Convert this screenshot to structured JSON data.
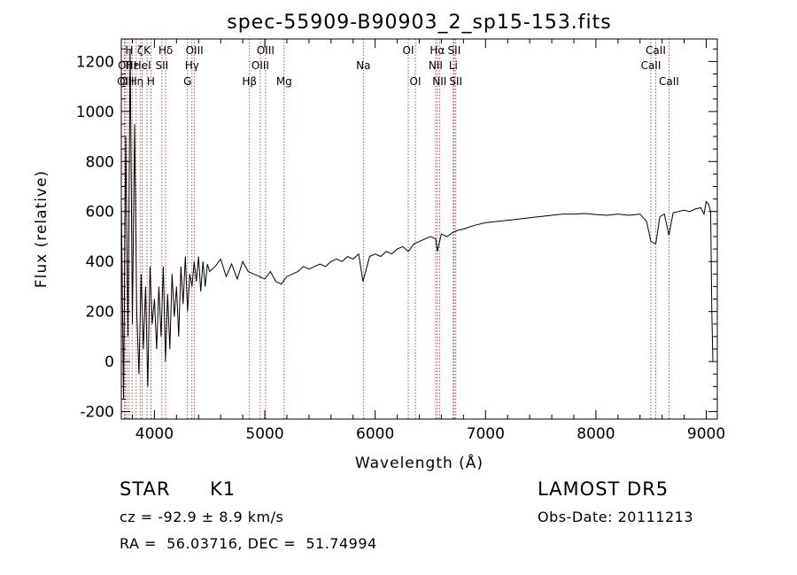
{
  "chart_data": {
    "type": "line",
    "title": "spec-55909-B90903_2_sp15-153.fits",
    "xlabel": "Wavelength (Å)",
    "ylabel": "Flux (relative)",
    "xlim": [
      3700,
      9100
    ],
    "ylim": [
      -230,
      1290
    ],
    "xticks": [
      4000,
      5000,
      6000,
      7000,
      8000,
      9000
    ],
    "yticks": [
      -200,
      0,
      200,
      400,
      600,
      800,
      1000,
      1200
    ],
    "grid": false,
    "line_color": "#000000",
    "marker_color": "#b22222",
    "series": [
      {
        "x": [
          3700,
          3720,
          3740,
          3760,
          3780,
          3800,
          3820,
          3840,
          3860,
          3880,
          3900,
          3920,
          3940,
          3960,
          3980,
          4000,
          4020,
          4040,
          4060,
          4080,
          4100,
          4120,
          4140,
          4160,
          4180,
          4200,
          4220,
          4240,
          4260,
          4280,
          4300,
          4320,
          4340,
          4360,
          4380,
          4400,
          4420,
          4440,
          4460,
          4480,
          4500,
          4550,
          4600,
          4650,
          4700,
          4750,
          4800,
          4850,
          4900,
          4950,
          5000,
          5050,
          5100,
          5150,
          5200,
          5250,
          5300,
          5350,
          5400,
          5450,
          5500,
          5550,
          5600,
          5650,
          5700,
          5750,
          5800,
          5850,
          5890,
          5950,
          6000,
          6050,
          6100,
          6150,
          6200,
          6250,
          6300,
          6350,
          6400,
          6450,
          6500,
          6550,
          6563,
          6600,
          6650,
          6700,
          6750,
          6800,
          6900,
          7000,
          7100,
          7200,
          7300,
          7400,
          7500,
          7600,
          7700,
          7800,
          7900,
          8000,
          8100,
          8200,
          8300,
          8400,
          8460,
          8498,
          8542,
          8580,
          8620,
          8662,
          8700,
          8750,
          8800,
          8850,
          8900,
          8950,
          8980,
          9000,
          9020,
          9040,
          9050,
          9060
        ],
        "y": [
          650,
          -150,
          900,
          100,
          1250,
          150,
          950,
          200,
          -50,
          350,
          50,
          300,
          -100,
          380,
          150,
          250,
          50,
          300,
          100,
          380,
          0,
          270,
          50,
          350,
          180,
          300,
          100,
          380,
          230,
          420,
          200,
          350,
          300,
          400,
          320,
          420,
          280,
          400,
          300,
          390,
          360,
          380,
          410,
          340,
          390,
          330,
          400,
          360,
          350,
          340,
          330,
          360,
          320,
          310,
          340,
          350,
          360,
          380,
          370,
          380,
          390,
          380,
          400,
          410,
          400,
          420,
          410,
          430,
          320,
          420,
          430,
          420,
          440,
          430,
          450,
          460,
          440,
          470,
          480,
          490,
          500,
          490,
          440,
          510,
          500,
          515,
          525,
          530,
          545,
          555,
          560,
          565,
          570,
          575,
          580,
          585,
          590,
          590,
          592,
          588,
          585,
          590,
          585,
          590,
          560,
          480,
          470,
          580,
          590,
          505,
          595,
          600,
          605,
          600,
          610,
          615,
          590,
          640,
          630,
          600,
          200,
          0
        ]
      }
    ],
    "markers": [
      {
        "x": 3727,
        "label": "OII",
        "row": 2
      },
      {
        "x": 3734,
        "label": "OII",
        "row": 1
      },
      {
        "x": 3750,
        "label": "OII",
        "row": 2
      },
      {
        "x": 3771,
        "label": "H",
        "row": 0
      },
      {
        "x": 3798,
        "label": "Hε",
        "row": 1
      },
      {
        "x": 3835,
        "label": "Hη",
        "row": 2
      },
      {
        "x": 3870,
        "label": "ζ",
        "row": 0
      },
      {
        "x": 3889,
        "label": "HeI",
        "row": 1
      },
      {
        "x": 3933,
        "label": "K",
        "row": 0
      },
      {
        "x": 3968,
        "label": "H",
        "row": 2
      },
      {
        "x": 4068,
        "label": "SII",
        "row": 1
      },
      {
        "x": 4102,
        "label": "Hδ",
        "row": 0
      },
      {
        "x": 4300,
        "label": "G",
        "row": 2
      },
      {
        "x": 4340,
        "label": "Hγ",
        "row": 1
      },
      {
        "x": 4363,
        "label": "OIII",
        "row": 0
      },
      {
        "x": 4861,
        "label": "Hβ",
        "row": 2
      },
      {
        "x": 4959,
        "label": "OIII",
        "row": 1
      },
      {
        "x": 5007,
        "label": "OIII",
        "row": 0
      },
      {
        "x": 5175,
        "label": "Mg",
        "row": 2
      },
      {
        "x": 5893,
        "label": "Na",
        "row": 1
      },
      {
        "x": 6300,
        "label": "OI",
        "row": 0
      },
      {
        "x": 6364,
        "label": "OI",
        "row": 2
      },
      {
        "x": 6548,
        "label": "NII",
        "row": 1
      },
      {
        "x": 6563,
        "label": "Hα",
        "row": 0
      },
      {
        "x": 6583,
        "label": "NII",
        "row": 2
      },
      {
        "x": 6708,
        "label": "Li",
        "row": 1
      },
      {
        "x": 6716,
        "label": "SII",
        "row": 0
      },
      {
        "x": 6731,
        "label": "SII",
        "row": 2
      },
      {
        "x": 8498,
        "label": "CaII",
        "row": 1
      },
      {
        "x": 8542,
        "label": "CaII",
        "row": 0
      },
      {
        "x": 8662,
        "label": "CaII",
        "row": 2
      }
    ]
  },
  "info": {
    "class_label": "STAR",
    "subclass": "K1",
    "cz": "cz = -92.9 ± 8.9 km/s",
    "coords": "RA =  56.03716, DEC =  51.74994",
    "survey": "LAMOST DR5",
    "obs_date": "Obs-Date: 20111213"
  }
}
